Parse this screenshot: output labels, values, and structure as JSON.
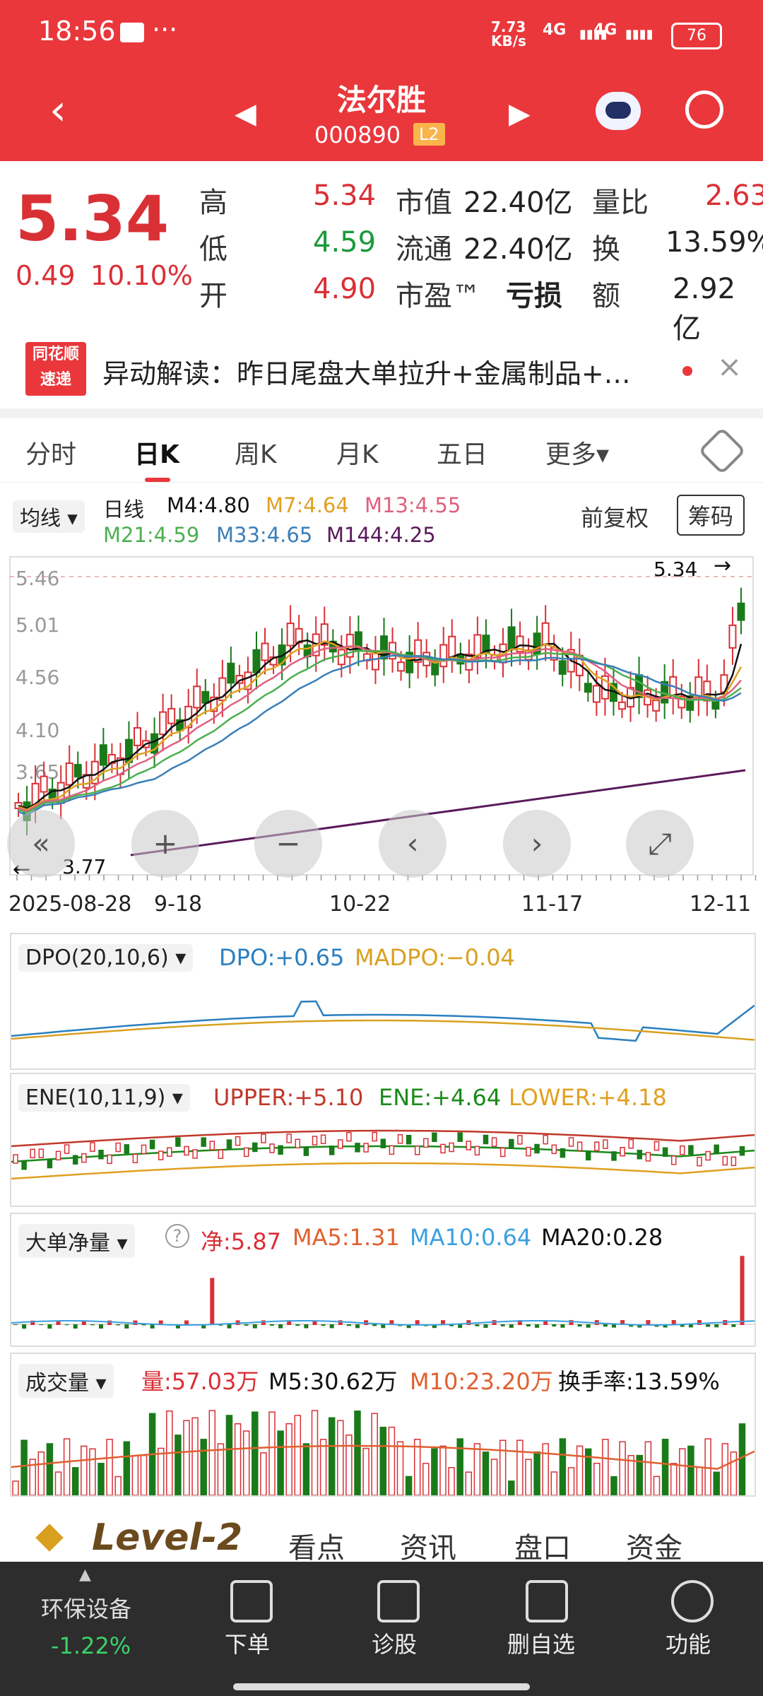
{
  "status": {
    "time": "18:56",
    "dots": "···",
    "net": "7.73\nKB/s",
    "sig1": "4G",
    "sig2": "4G",
    "battery": "76"
  },
  "header": {
    "title": "法尔胜",
    "code": "000890",
    "l2": "L2"
  },
  "quote": {
    "price": "5.34",
    "change": "0.49",
    "change_pct": "10.10%",
    "high_label": "高",
    "high": "5.34",
    "low_label": "低",
    "low": "4.59",
    "open_label": "开",
    "open": "4.90",
    "mktcap_label": "市值",
    "mktcap": "22.40亿",
    "float_label": "流通",
    "float": "22.40亿",
    "pe_label": "市盈™",
    "pe": "亏损",
    "volratio_label": "量比",
    "volratio": "2.63",
    "turnover_label": "换",
    "turnover": "13.59%",
    "amount_label": "额",
    "amount": "2.92亿"
  },
  "news": {
    "logo_top": "同花顺",
    "logo_bottom": "速递",
    "text": "异动解读：昨日尾盘大单拉升+金属制品+…",
    "close": "×"
  },
  "tabs": [
    "分时",
    "日K",
    "周K",
    "月K",
    "五日",
    "更多▾"
  ],
  "ma_legend": {
    "btn": "均线 ▾",
    "period": "日线",
    "m4": "M4:4.80",
    "m7": "M7:4.64",
    "m13": "M13:4.55",
    "m21": "M21:4.59",
    "m33": "M33:4.65",
    "m144": "M144:4.25",
    "restore": "前复权",
    "chips": "筹码"
  },
  "kchart": {
    "y_labels": [
      "5.46",
      "5.01",
      "4.56",
      "4.10",
      "3.65"
    ],
    "max_label": "5.34",
    "min_label": "3.77",
    "dates": [
      "2025-08-28",
      "9-18",
      "10-22",
      "11-17",
      "12-11"
    ]
  },
  "controls": [
    "«",
    "+",
    "−",
    "‹",
    "›",
    "⤢"
  ],
  "dpo": {
    "name": "DPO(20,10,6) ▾",
    "v1": "DPO:+0.65",
    "v2": "MADPO:−0.04"
  },
  "ene": {
    "name": "ENE(10,11,9) ▾",
    "upper": "UPPER:+5.10",
    "ene": "ENE:+4.64",
    "lower": "LOWER:+4.18"
  },
  "bigorder": {
    "name": "大单净量 ▾",
    "help": "?",
    "net": "净:5.87",
    "ma5": "MA5:1.31",
    "ma10": "MA10:0.64",
    "ma20": "MA20:0.28"
  },
  "volume": {
    "name": "成交量 ▾",
    "vol": "量:57.03万",
    "m5": "M5:30.62万",
    "m10": "M10:23.20万",
    "turn": "换手率:13.59%"
  },
  "bottom_tabs": {
    "level2": "Level-2",
    "t1": "看点",
    "t2": "资讯",
    "t3": "盘口",
    "t4": "资金"
  },
  "bottom_nav": {
    "sector": "环保设备",
    "sector_chg": "-1.22%",
    "b1": "下单",
    "b2": "诊股",
    "b3": "删自选",
    "b4": "功能"
  },
  "colors": {
    "red": "#d93036",
    "green": "#1a7a1a",
    "header": "#e9373c"
  }
}
